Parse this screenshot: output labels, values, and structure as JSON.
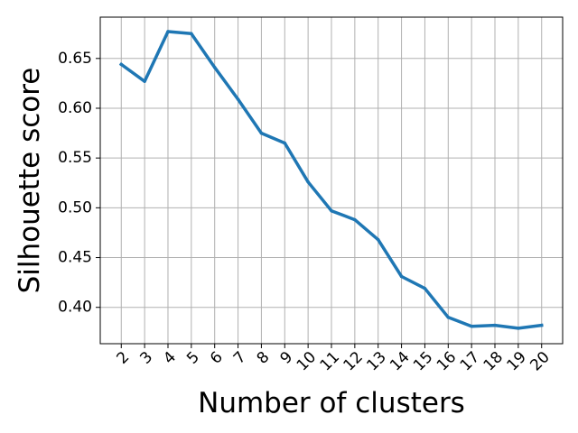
{
  "chart_data": {
    "type": "line",
    "title": "",
    "xlabel": "Number of clusters",
    "ylabel": "Silhouette score",
    "x": [
      2,
      3,
      4,
      5,
      6,
      7,
      8,
      9,
      10,
      11,
      12,
      13,
      14,
      15,
      16,
      17,
      18,
      19,
      20
    ],
    "x_tick_labels": [
      "2",
      "3",
      "4",
      "5",
      "6",
      "7",
      "8",
      "9",
      "10",
      "11",
      "12",
      "13",
      "14",
      "15",
      "16",
      "17",
      "18",
      "19",
      "20"
    ],
    "series": [
      {
        "values": [
          0.644,
          0.627,
          0.677,
          0.675,
          0.641,
          0.609,
          0.575,
          0.565,
          0.526,
          0.497,
          0.488,
          0.468,
          0.431,
          0.419,
          0.39,
          0.381,
          0.382,
          0.379,
          0.382
        ],
        "color": "#1f77b4"
      }
    ],
    "xlim": [
      1.1,
      20.9
    ],
    "ylim": [
      0.3635,
      0.6915
    ],
    "y_ticks": [
      0.4,
      0.45,
      0.5,
      0.55,
      0.6,
      0.65
    ],
    "y_tick_labels": [
      "0.40",
      "0.45",
      "0.50",
      "0.55",
      "0.60",
      "0.65"
    ],
    "grid": true,
    "x_tick_rotation": "45 degrees",
    "legend": "none"
  }
}
